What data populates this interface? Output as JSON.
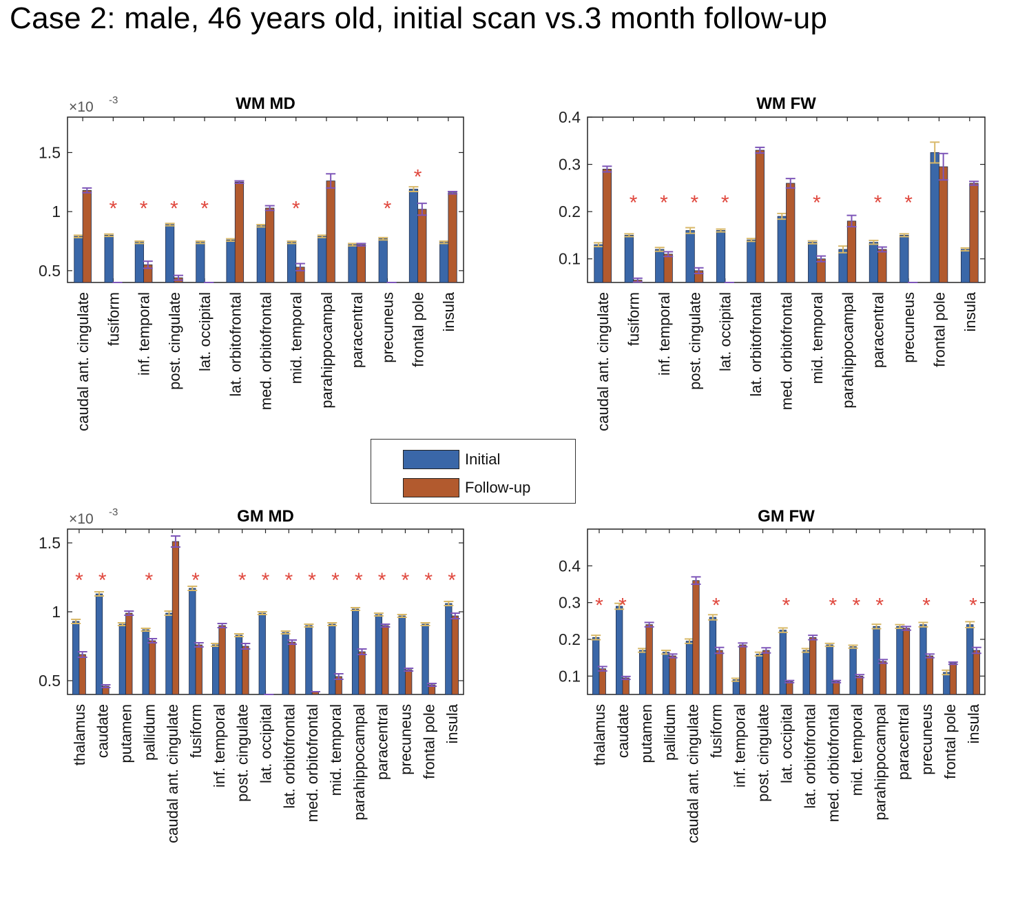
{
  "title": "Case 2:  male, 46 years old, initial scan vs.3 month follow-up",
  "colors": {
    "initial": "#3a67a8",
    "followup": "#b25a2e",
    "err_initial": "#d8b868",
    "err_followup": "#7d55b8",
    "star": "#e0483e"
  },
  "legend": {
    "initial_label": "Initial",
    "followup_label": "Follow-up"
  },
  "chart_data": [
    {
      "type": "bar",
      "title": "WM MD",
      "exponent_label": "×10",
      "exponent_power": "-3",
      "ylim": [
        0.4,
        1.8
      ],
      "yticks": [
        0.5,
        1,
        1.5
      ],
      "ytick_labels": [
        "0.5",
        "1",
        "1.5"
      ],
      "categories": [
        "caudal ant. cingulate",
        "fusiform",
        "inf. temporal",
        "post. cingulate",
        "lat. occipital",
        "lat. orbitofrontal",
        "med. orbitofrontal",
        "mid. temporal",
        "parahippocampal",
        "paracentral",
        "precuneus",
        "frontal pole",
        "insula"
      ],
      "series": [
        {
          "name": "Initial",
          "values": [
            0.79,
            0.8,
            0.74,
            0.89,
            0.74,
            0.76,
            0.88,
            0.74,
            0.79,
            0.72,
            0.77,
            1.19,
            0.74
          ],
          "errors": [
            0.01,
            0.01,
            0.01,
            0.01,
            0.01,
            0.01,
            0.01,
            0.01,
            0.01,
            0.01,
            0.01,
            0.02,
            0.01
          ]
        },
        {
          "name": "Follow-up",
          "values": [
            1.18,
            0.39,
            0.55,
            0.44,
            0.39,
            1.25,
            1.03,
            0.53,
            1.26,
            0.72,
            0.39,
            1.02,
            1.16
          ],
          "errors": [
            0.02,
            0.0,
            0.03,
            0.02,
            0.0,
            0.01,
            0.02,
            0.03,
            0.06,
            0.01,
            0.0,
            0.05,
            0.01
          ]
        }
      ],
      "significant": [
        false,
        true,
        true,
        true,
        true,
        false,
        false,
        true,
        false,
        false,
        true,
        true,
        false
      ]
    },
    {
      "type": "bar",
      "title": "WM FW",
      "ylim": [
        0.05,
        0.4
      ],
      "yticks": [
        0.1,
        0.2,
        0.3,
        0.4
      ],
      "ytick_labels": [
        "0.1",
        "0.2",
        "0.3",
        "0.4"
      ],
      "categories": [
        "caudal ant. cingulate",
        "fusiform",
        "inf. temporal",
        "post. cingulate",
        "lat. occipital",
        "lat. orbitofrontal",
        "med. orbitofrontal",
        "mid. temporal",
        "parahippocampal",
        "paracentral",
        "precuneus",
        "frontal pole",
        "insula"
      ],
      "series": [
        {
          "name": "Initial",
          "values": [
            0.13,
            0.15,
            0.12,
            0.16,
            0.16,
            0.14,
            0.19,
            0.135,
            0.12,
            0.135,
            0.15,
            0.325,
            0.12
          ],
          "errors": [
            0.004,
            0.003,
            0.004,
            0.006,
            0.003,
            0.003,
            0.006,
            0.003,
            0.007,
            0.004,
            0.003,
            0.022,
            0.003
          ]
        },
        {
          "name": "Follow-up",
          "values": [
            0.29,
            0.055,
            0.11,
            0.075,
            0.04,
            0.33,
            0.26,
            0.1,
            0.18,
            0.12,
            0.04,
            0.295,
            0.26
          ],
          "errors": [
            0.006,
            0.004,
            0.005,
            0.006,
            0.0,
            0.006,
            0.01,
            0.006,
            0.012,
            0.005,
            0.0,
            0.028,
            0.004
          ]
        }
      ],
      "significant": [
        false,
        true,
        true,
        true,
        true,
        false,
        false,
        true,
        false,
        true,
        true,
        false,
        false
      ]
    },
    {
      "type": "bar",
      "title": "GM MD",
      "exponent_label": "×10",
      "exponent_power": "-3",
      "ylim": [
        0.4,
        1.6
      ],
      "yticks": [
        0.5,
        1,
        1.5
      ],
      "ytick_labels": [
        "0.5",
        "1",
        "1.5"
      ],
      "categories": [
        "thalamus",
        "caudate",
        "putamen",
        "pallidum",
        "caudal ant. cingulate",
        "fusiform",
        "inf. temporal",
        "post. cingulate",
        "lat. occipital",
        "lat. orbitofrontal",
        "med. orbitofrontal",
        "mid. temporal",
        "parahippocampal",
        "paracentral",
        "precuneus",
        "frontal pole",
        "insula"
      ],
      "series": [
        {
          "name": "Initial",
          "values": [
            0.93,
            1.13,
            0.91,
            0.87,
            0.99,
            1.17,
            0.76,
            0.83,
            0.99,
            0.85,
            0.9,
            0.91,
            1.02,
            0.98,
            0.97,
            0.91,
            1.06
          ],
          "errors": [
            0.015,
            0.015,
            0.01,
            0.01,
            0.015,
            0.015,
            0.01,
            0.01,
            0.01,
            0.01,
            0.01,
            0.01,
            0.01,
            0.01,
            0.01,
            0.01,
            0.015
          ]
        },
        {
          "name": "Follow-up",
          "values": [
            0.69,
            0.46,
            0.99,
            0.79,
            1.51,
            0.76,
            0.9,
            0.75,
            0.4,
            0.78,
            0.42,
            0.53,
            0.71,
            0.9,
            0.58,
            0.47,
            0.97
          ],
          "errors": [
            0.02,
            0.01,
            0.015,
            0.015,
            0.04,
            0.015,
            0.015,
            0.02,
            0.0,
            0.015,
            0.0,
            0.02,
            0.02,
            0.01,
            0.01,
            0.01,
            0.02
          ]
        }
      ],
      "significant": [
        true,
        true,
        false,
        true,
        false,
        true,
        false,
        true,
        true,
        true,
        true,
        true,
        true,
        true,
        true,
        true,
        true
      ]
    },
    {
      "type": "bar",
      "title": "GM FW",
      "ylim": [
        0.05,
        0.5
      ],
      "yticks": [
        0.1,
        0.2,
        0.3,
        0.4
      ],
      "ytick_labels": [
        "0.1",
        "0.2",
        "0.3",
        "0.4"
      ],
      "categories": [
        "thalamus",
        "caudate",
        "putamen",
        "pallidum",
        "caudal ant. cingulate",
        "fusiform",
        "inf. temporal",
        "post. cingulate",
        "lat. occipital",
        "lat. orbitofrontal",
        "med. orbitofrontal",
        "mid. temporal",
        "parahippocampal",
        "paracentral",
        "precuneus",
        "frontal pole",
        "insula"
      ],
      "series": [
        {
          "name": "Initial",
          "values": [
            0.205,
            0.29,
            0.17,
            0.165,
            0.195,
            0.26,
            0.09,
            0.16,
            0.225,
            0.17,
            0.185,
            0.18,
            0.235,
            0.235,
            0.24,
            0.11,
            0.24
          ],
          "errors": [
            0.006,
            0.008,
            0.005,
            0.005,
            0.006,
            0.007,
            0.004,
            0.005,
            0.006,
            0.005,
            0.004,
            0.004,
            0.006,
            0.005,
            0.006,
            0.006,
            0.008
          ]
        },
        {
          "name": "Follow-up",
          "values": [
            0.12,
            0.095,
            0.24,
            0.155,
            0.36,
            0.17,
            0.185,
            0.17,
            0.085,
            0.205,
            0.085,
            0.1,
            0.14,
            0.23,
            0.155,
            0.135,
            0.17
          ],
          "errors": [
            0.006,
            0.004,
            0.006,
            0.005,
            0.01,
            0.008,
            0.005,
            0.007,
            0.003,
            0.006,
            0.003,
            0.004,
            0.005,
            0.005,
            0.005,
            0.003,
            0.008
          ]
        }
      ],
      "significant": [
        true,
        true,
        false,
        false,
        false,
        true,
        false,
        false,
        true,
        false,
        true,
        true,
        true,
        false,
        true,
        false,
        true
      ]
    }
  ]
}
